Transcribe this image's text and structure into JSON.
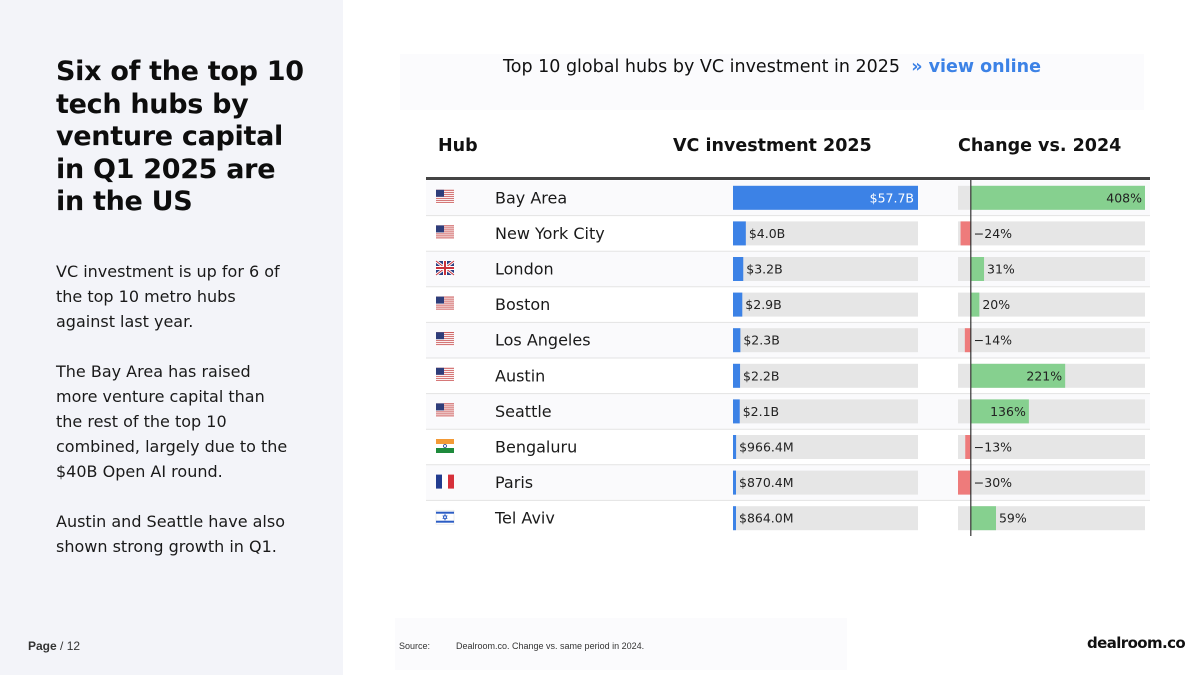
{
  "headline": "Six of the top 10 tech hubs by venture capital in Q1 2025 are in the US",
  "body_paragraphs": [
    "VC investment is up for 6 of the top 10 metro hubs against last year.",
    "The Bay Area has raised more venture capital than the rest of the top 10 combined, largely due to the $40B Open AI round.",
    "Austin and Seattle have also shown strong growth in Q1."
  ],
  "footer": {
    "page_label": "Page",
    "page_suffix": "/ 12"
  },
  "source": {
    "label": "Source:",
    "text": "Dealroom.co. Change vs. same period in  2024."
  },
  "logo": "dealroom.co",
  "colors": {
    "investment_bar": "#3c82e6",
    "positive_change": "#86d08f",
    "negative_change": "#ee7b7b",
    "track": "#e6e6e6",
    "link": "#3c82e6"
  },
  "chart_data": {
    "type": "table",
    "title": "Top 10 global hubs by VC investment in 2025",
    "title_link": "» view online",
    "columns": [
      "Hub",
      "VC investment 2025",
      "Change vs. 2024"
    ],
    "rows": [
      {
        "hub": "Bay Area",
        "flag": "us-flag-icon",
        "investment_b": 57.7,
        "investment_label": "$57.7B",
        "change_pct": 408,
        "change_label": "408%"
      },
      {
        "hub": "New York City",
        "flag": "us-flag-icon",
        "investment_b": 4.0,
        "investment_label": "$4.0B",
        "change_pct": -24,
        "change_label": "−24%"
      },
      {
        "hub": "London",
        "flag": "uk-flag-icon",
        "investment_b": 3.2,
        "investment_label": "$3.2B",
        "change_pct": 31,
        "change_label": "31%"
      },
      {
        "hub": "Boston",
        "flag": "us-flag-icon",
        "investment_b": 2.9,
        "investment_label": "$2.9B",
        "change_pct": 20,
        "change_label": "20%"
      },
      {
        "hub": "Los Angeles",
        "flag": "us-flag-icon",
        "investment_b": 2.3,
        "investment_label": "$2.3B",
        "change_pct": -14,
        "change_label": "−14%"
      },
      {
        "hub": "Austin",
        "flag": "us-flag-icon",
        "investment_b": 2.2,
        "investment_label": "$2.2B",
        "change_pct": 221,
        "change_label": "221%"
      },
      {
        "hub": "Seattle",
        "flag": "us-flag-icon",
        "investment_b": 2.1,
        "investment_label": "$2.1B",
        "change_pct": 136,
        "change_label": "136%"
      },
      {
        "hub": "Bengaluru",
        "flag": "india-flag-icon",
        "investment_b": 0.9664,
        "investment_label": "$966.4M",
        "change_pct": -13,
        "change_label": "−13%"
      },
      {
        "hub": "Paris",
        "flag": "france-flag-icon",
        "investment_b": 0.8704,
        "investment_label": "$870.4M",
        "change_pct": -30,
        "change_label": "−30%"
      },
      {
        "hub": "Tel Aviv",
        "flag": "israel-flag-icon",
        "investment_b": 0.864,
        "investment_label": "$864.0M",
        "change_pct": 59,
        "change_label": "59%"
      }
    ],
    "investment_max_b": 57.7,
    "change_range": [
      -30,
      408
    ]
  }
}
